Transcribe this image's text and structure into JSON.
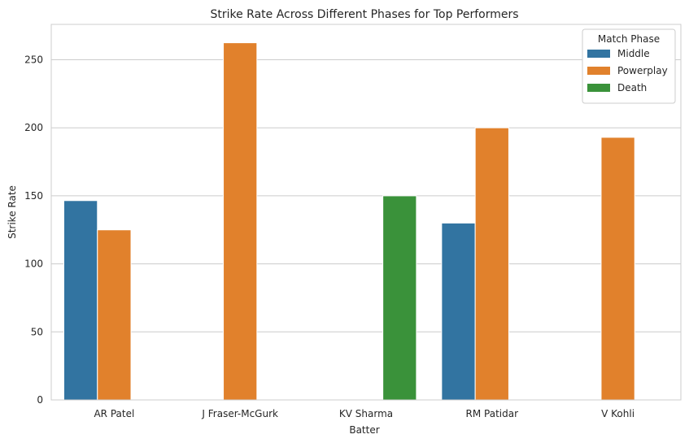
{
  "chart_data": {
    "type": "bar",
    "title": "Strike Rate Across Different Phases for Top Performers",
    "xlabel": "Batter",
    "ylabel": "Strike Rate",
    "categories": [
      "AR Patel",
      "J Fraser-McGurk",
      "KV Sharma",
      "RM Patidar",
      "V Kohli"
    ],
    "series": [
      {
        "name": "Middle",
        "color": "#3274a1",
        "values": [
          146.5,
          null,
          null,
          130,
          null
        ]
      },
      {
        "name": "Powerplay",
        "color": "#e1812c",
        "values": [
          125,
          262.5,
          null,
          200,
          193
        ]
      },
      {
        "name": "Death",
        "color": "#3a923a",
        "values": [
          null,
          null,
          150,
          null,
          null
        ]
      }
    ],
    "ylim": [
      0,
      276
    ],
    "yticks": [
      0,
      50,
      100,
      150,
      200,
      250
    ],
    "grid": true,
    "legend": {
      "title": "Match Phase",
      "position": "top-right"
    }
  }
}
